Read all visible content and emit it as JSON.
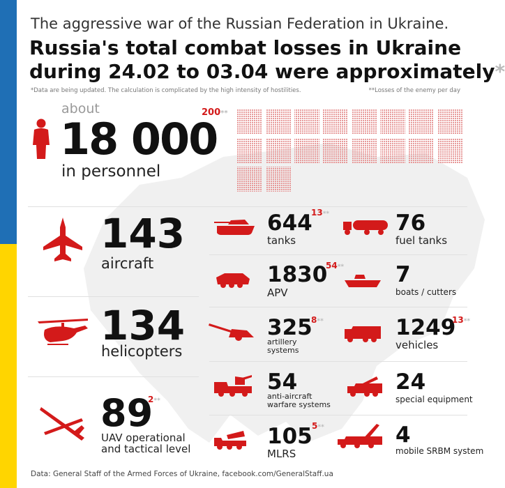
{
  "header": {
    "subtitle": "The aggressive war of the Russian Federation in Ukraine.",
    "title_line1": "Russia's total combat losses in Ukraine",
    "title_line2": "during 24.02 to 03.04 were approximately",
    "title_asterisk": "*",
    "note_updated": "*Data are being updated. The calculation is complicated by the high intensity of hostilities.",
    "note_per_day": "**Losses of the enemy per day"
  },
  "personnel": {
    "prefix": "about",
    "value": "18 000",
    "label": "in personnel",
    "per_day": "200",
    "per_day_mark": "**",
    "icon": "person-icon"
  },
  "left_items": [
    {
      "value": "143",
      "label": "aircraft",
      "icon": "fighter-jet-icon"
    },
    {
      "value": "134",
      "label": "helicopters",
      "icon": "helicopter-icon"
    },
    {
      "value": "89",
      "label1": "UAV operational",
      "label2": "and tactical level",
      "per_day": "2",
      "per_day_mark": "**",
      "icon": "drone-icon"
    }
  ],
  "mid_items": [
    {
      "value": "644",
      "label": "tanks",
      "per_day": "13",
      "per_day_mark": "**",
      "icon": "tank-icon"
    },
    {
      "value": "1830",
      "label": "APV",
      "per_day": "54",
      "per_day_mark": "**",
      "icon": "apv-icon"
    },
    {
      "value": "325",
      "label1": "artillery",
      "label2": "systems",
      "per_day": "8",
      "per_day_mark": "**",
      "icon": "artillery-icon"
    },
    {
      "value": "54",
      "label1": "anti-aircraft",
      "label2": "warfare systems",
      "icon": "anti-aircraft-icon"
    },
    {
      "value": "105",
      "label": "MLRS",
      "per_day": "5",
      "per_day_mark": "**",
      "icon": "mlrs-icon"
    }
  ],
  "right_items": [
    {
      "value": "76",
      "label": "fuel tanks",
      "icon": "fuel-tank-icon"
    },
    {
      "value": "7",
      "label": "boats / cutters",
      "icon": "boat-icon"
    },
    {
      "value": "1249",
      "label": "vehicles",
      "per_day": "13",
      "per_day_mark": "**",
      "icon": "truck-icon"
    },
    {
      "value": "24",
      "label": "special equipment",
      "icon": "crane-truck-icon"
    },
    {
      "value": "4",
      "label": "mobile SRBM system",
      "icon": "missile-launcher-icon"
    }
  ],
  "footer": {
    "source": "Data: General Staff of the Armed Forces of Ukraine, facebook.com/GeneralStaff.ua"
  },
  "colors": {
    "accent_red": "#d31a1a",
    "flag_blue": "#1f6fb5",
    "flag_yellow": "#ffd500",
    "map_gray": "#efefef"
  }
}
